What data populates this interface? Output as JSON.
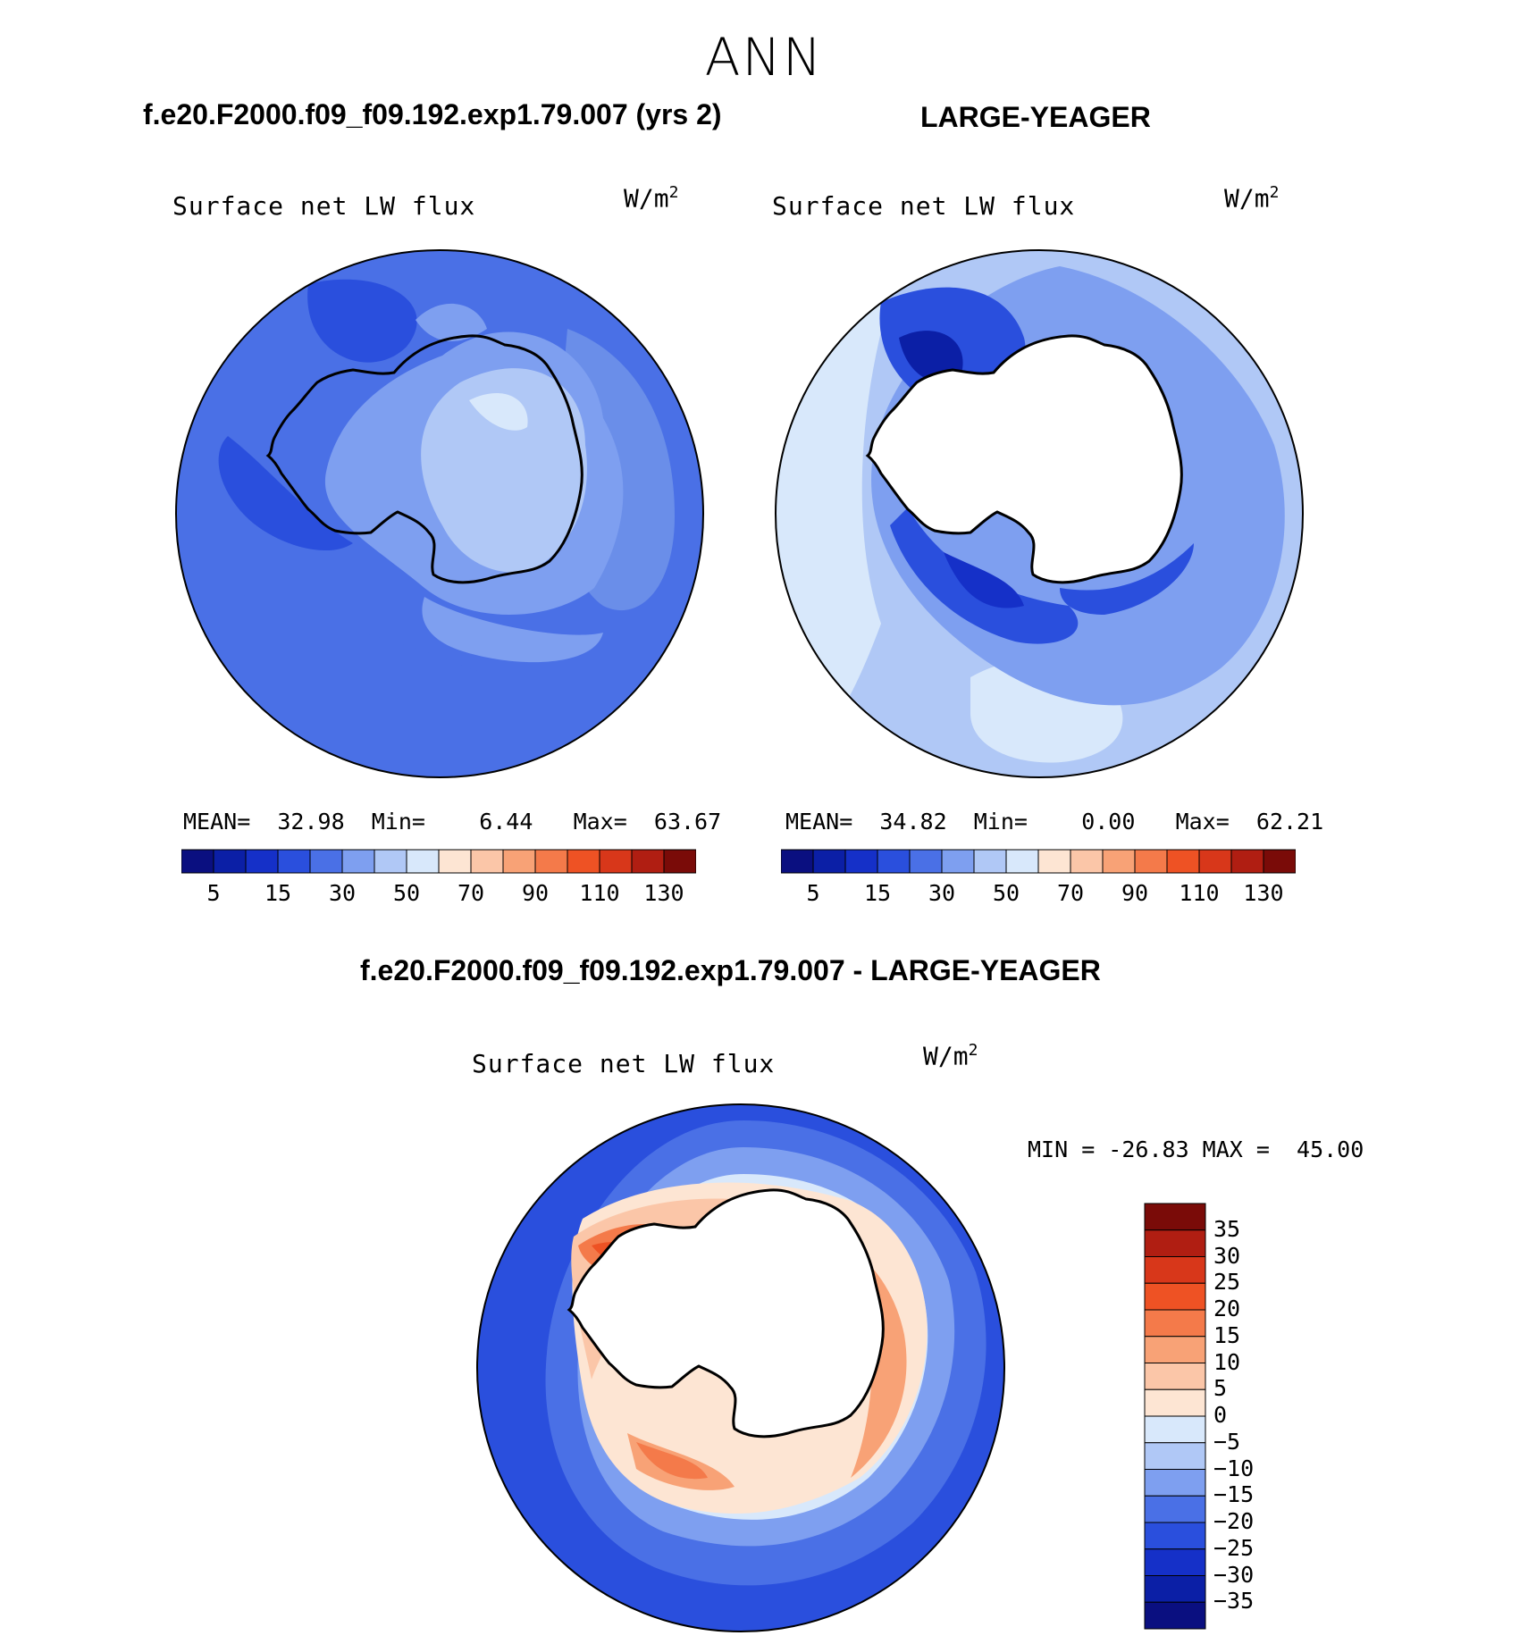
{
  "season": "ANN",
  "panels": [
    {
      "case_title": "f.e20.F2000.f09_f09.192.exp1.79.007 (yrs 2)",
      "variable": "Surface net LW flux",
      "units": "W/m",
      "units_exp": "2",
      "stats": {
        "mean_label": "MEAN=",
        "mean": "32.98",
        "min_label": "Min=",
        "min": "6.44",
        "max_label": "Max=",
        "max": "63.67"
      }
    },
    {
      "case_title": "LARGE-YEAGER",
      "variable": "Surface net LW flux",
      "units": "W/m",
      "units_exp": "2",
      "stats": {
        "mean_label": "MEAN=",
        "mean": "34.82",
        "min_label": "Min=",
        "min": "0.00",
        "max_label": "Max=",
        "max": "62.21"
      }
    }
  ],
  "abs_colorbar": {
    "colors": [
      "#0a0f80",
      "#0b1fa6",
      "#1530c8",
      "#2a4fdd",
      "#4a70e6",
      "#7e9ff0",
      "#b0c8f6",
      "#d8e8fb",
      "#fde5d3",
      "#fbc6a8",
      "#f8a276",
      "#f47a4a",
      "#ee5224",
      "#d8371a",
      "#b01e12",
      "#7a0b08"
    ],
    "tick_labels": [
      "5",
      "15",
      "30",
      "50",
      "70",
      "90",
      "110",
      "130"
    ]
  },
  "diff": {
    "title": "f.e20.F2000.f09_f09.192.exp1.79.007 - LARGE-YEAGER",
    "variable": "Surface net LW flux",
    "units": "W/m",
    "units_exp": "2",
    "minmax": "MIN = -26.83 MAX =  45.00",
    "colorbar": {
      "colors": [
        "#7a0b08",
        "#b01e12",
        "#d8371a",
        "#ee5224",
        "#f47a4a",
        "#f8a276",
        "#fbc6a8",
        "#fde5d3",
        "#d8e8fb",
        "#b0c8f6",
        "#7e9ff0",
        "#4a70e6",
        "#2a4fdd",
        "#1530c8",
        "#0b1fa6",
        "#0a0f80"
      ],
      "tick_labels": [
        "35",
        "30",
        "25",
        "20",
        "15",
        "10",
        "5",
        "0",
        "-5",
        "-10",
        "-15",
        "-20",
        "-25",
        "-30",
        "-35"
      ]
    }
  }
}
